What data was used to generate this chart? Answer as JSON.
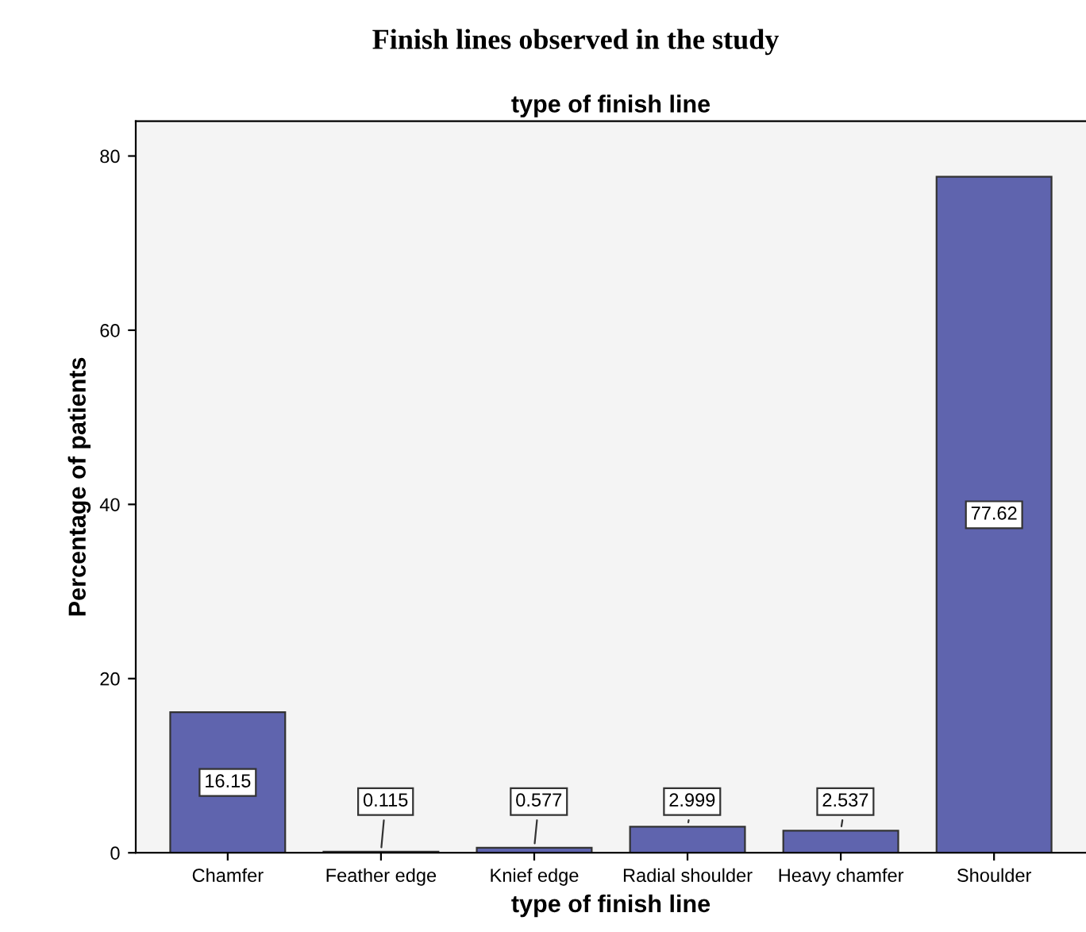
{
  "chart_data": {
    "type": "bar",
    "title": "Finish lines observed in the study",
    "subtitle": "type of finish line",
    "xlabel": "type of finish line",
    "ylabel": "Percentage of patients",
    "categories": [
      "Chamfer",
      "Feather edge",
      "Knief edge",
      "Radial shoulder",
      "Heavy chamfer",
      "Shoulder"
    ],
    "values": [
      16.15,
      0.115,
      0.577,
      2.999,
      2.537,
      77.62
    ],
    "color": "#5f64ae",
    "ylim": [
      0,
      84
    ],
    "yticks": [
      0,
      20,
      40,
      60,
      80
    ],
    "grid": false,
    "data_labels": true
  }
}
